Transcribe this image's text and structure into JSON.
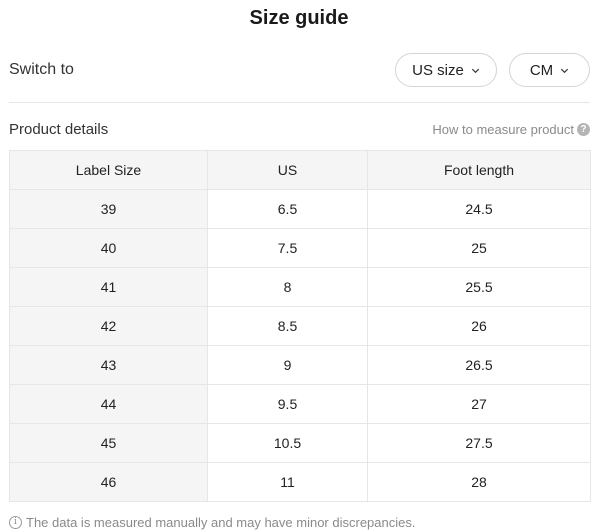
{
  "header": {
    "title": "Size guide"
  },
  "switch": {
    "label": "Switch to",
    "size_system": "US size",
    "unit": "CM"
  },
  "details": {
    "title": "Product details",
    "measure_link": "How to measure product",
    "help_icon_glyph": "?"
  },
  "table": {
    "headers": [
      "Label Size",
      "US",
      "Foot length"
    ],
    "rows": [
      [
        "39",
        "6.5",
        "24.5"
      ],
      [
        "40",
        "7.5",
        "25"
      ],
      [
        "41",
        "8",
        "25.5"
      ],
      [
        "42",
        "8.5",
        "26"
      ],
      [
        "43",
        "9",
        "26.5"
      ],
      [
        "44",
        "9.5",
        "27"
      ],
      [
        "45",
        "10.5",
        "27.5"
      ],
      [
        "46",
        "11",
        "28"
      ]
    ]
  },
  "footer": {
    "info_icon_glyph": "i",
    "note": "The data is measured manually and may have minor discrepancies."
  },
  "icons": {
    "chevron": "chevron-down-icon",
    "help": "question-circle-icon",
    "info": "info-circle-icon"
  },
  "colors": {
    "header_bg": "#f5f5f5",
    "border": "#e6e6e6",
    "muted_text": "#8a8a8a"
  }
}
